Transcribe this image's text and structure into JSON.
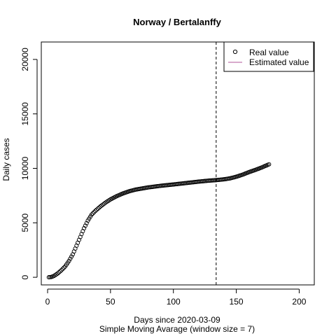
{
  "chart_data": {
    "type": "scatter",
    "title": "Norway / Bertalanffy",
    "xlabel": "Days since 2020-03-09",
    "subtitle": "Simple Moving Avarage (window size = 7)",
    "ylabel": "Daily cases",
    "xlim": [
      -5,
      212
    ],
    "ylim": [
      -700,
      21600
    ],
    "x_ticks": [
      0,
      50,
      100,
      150,
      200
    ],
    "x_tick_labels": [
      "0",
      "50",
      "100",
      "150",
      "200"
    ],
    "y_ticks": [
      0,
      5000,
      10000,
      15000,
      20000
    ],
    "y_tick_labels": [
      "0",
      "5000",
      "10000",
      "15000",
      "20000"
    ],
    "vline": {
      "x": 134,
      "style": "dashed"
    },
    "legend": {
      "position": "top-right",
      "items": [
        {
          "label": "Real value",
          "type": "point"
        },
        {
          "label": "Estimated value",
          "type": "line",
          "color": "#b0549a"
        }
      ]
    },
    "series": [
      {
        "name": "Real value",
        "marker": "open-circle",
        "curve_points": [
          [
            1,
            0
          ],
          [
            3,
            30
          ],
          [
            5,
            120
          ],
          [
            8,
            350
          ],
          [
            11,
            650
          ],
          [
            14,
            1000
          ],
          [
            17,
            1500
          ],
          [
            20,
            2100
          ],
          [
            23,
            2900
          ],
          [
            26,
            3700
          ],
          [
            29,
            4500
          ],
          [
            32,
            5200
          ],
          [
            35,
            5750
          ],
          [
            38,
            6100
          ],
          [
            42,
            6500
          ],
          [
            46,
            6850
          ],
          [
            50,
            7150
          ],
          [
            55,
            7450
          ],
          [
            60,
            7700
          ],
          [
            65,
            7900
          ],
          [
            70,
            8050
          ],
          [
            75,
            8150
          ],
          [
            80,
            8250
          ],
          [
            90,
            8400
          ],
          [
            100,
            8520
          ],
          [
            110,
            8650
          ],
          [
            120,
            8780
          ],
          [
            128,
            8870
          ],
          [
            134,
            8920
          ],
          [
            140,
            8990
          ],
          [
            145,
            9080
          ],
          [
            150,
            9230
          ],
          [
            155,
            9420
          ],
          [
            160,
            9650
          ],
          [
            165,
            9850
          ],
          [
            170,
            10070
          ],
          [
            173,
            10220
          ],
          [
            176,
            10370
          ]
        ],
        "x_range": [
          1,
          176
        ]
      }
    ]
  }
}
